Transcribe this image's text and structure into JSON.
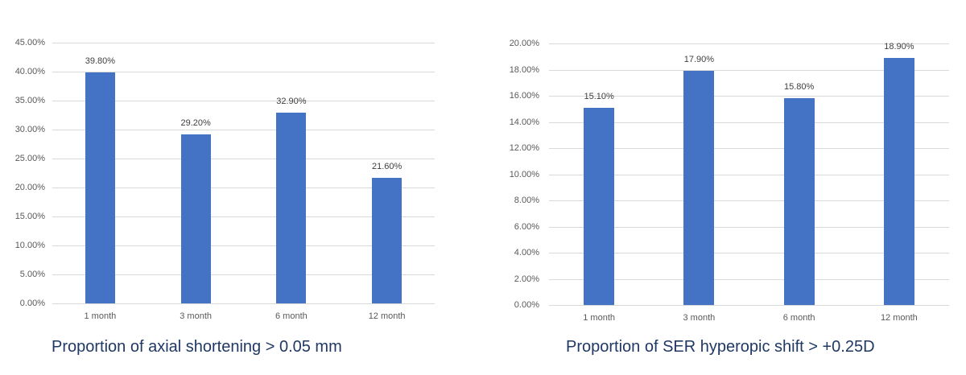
{
  "chart_data": [
    {
      "type": "bar",
      "title": "Proportion of axial shortening > 0.05 mm",
      "xlabel": "",
      "ylabel": "",
      "categories": [
        "1 month",
        "3 month",
        "6 month",
        "12 month"
      ],
      "values": [
        39.8,
        29.2,
        32.9,
        21.6
      ],
      "value_labels": [
        "39.80%",
        "29.20%",
        "32.90%",
        "21.60%"
      ],
      "ylim": [
        0,
        45
      ],
      "yticks": [
        "0.00%",
        "5.00%",
        "10.00%",
        "15.00%",
        "20.00%",
        "25.00%",
        "30.00%",
        "35.00%",
        "40.00%",
        "45.00%"
      ],
      "grid": true,
      "legend": "none",
      "color": "#4472c4"
    },
    {
      "type": "bar",
      "title": "Proportion of SER hyperopic shift > +0.25D",
      "xlabel": "",
      "ylabel": "",
      "categories": [
        "1 month",
        "3 month",
        "6 month",
        "12 month"
      ],
      "values": [
        15.1,
        17.9,
        15.8,
        18.9
      ],
      "value_labels": [
        "15.10%",
        "17.90%",
        "15.80%",
        "18.90%"
      ],
      "ylim": [
        0,
        20
      ],
      "yticks": [
        "0.00%",
        "2.00%",
        "4.00%",
        "6.00%",
        "8.00%",
        "10.00%",
        "12.00%",
        "14.00%",
        "16.00%",
        "18.00%",
        "20.00%"
      ],
      "grid": true,
      "legend": "none",
      "color": "#4472c4"
    }
  ]
}
